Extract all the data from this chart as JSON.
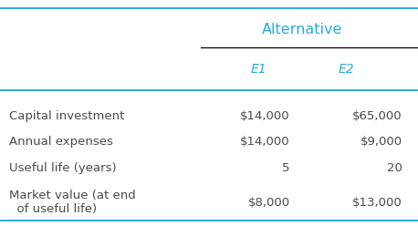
{
  "title": "Alternative",
  "col_headers": [
    "E1",
    "E2"
  ],
  "row_labels": [
    "Capital investment",
    "Annual expenses",
    "Useful life (years)",
    "Market value (at end\n  of useful life)"
  ],
  "values": [
    [
      "$14,000",
      "$65,000"
    ],
    [
      "$14,000",
      "$9,000"
    ],
    [
      "5",
      "20"
    ],
    [
      "$8,000",
      "$13,000"
    ]
  ],
  "title_color": "#29ABE2",
  "header_color": "#29ABE2",
  "text_color": "#4A4A4A",
  "background_color": "#FFFFFF",
  "top_line_color": "#29ABE2",
  "mid_line_color": "#000000",
  "header_line_color": "#29ABE2",
  "bottom_line_color": "#29ABE2",
  "title_fontsize": 11.5,
  "header_fontsize": 10,
  "body_fontsize": 9.5
}
